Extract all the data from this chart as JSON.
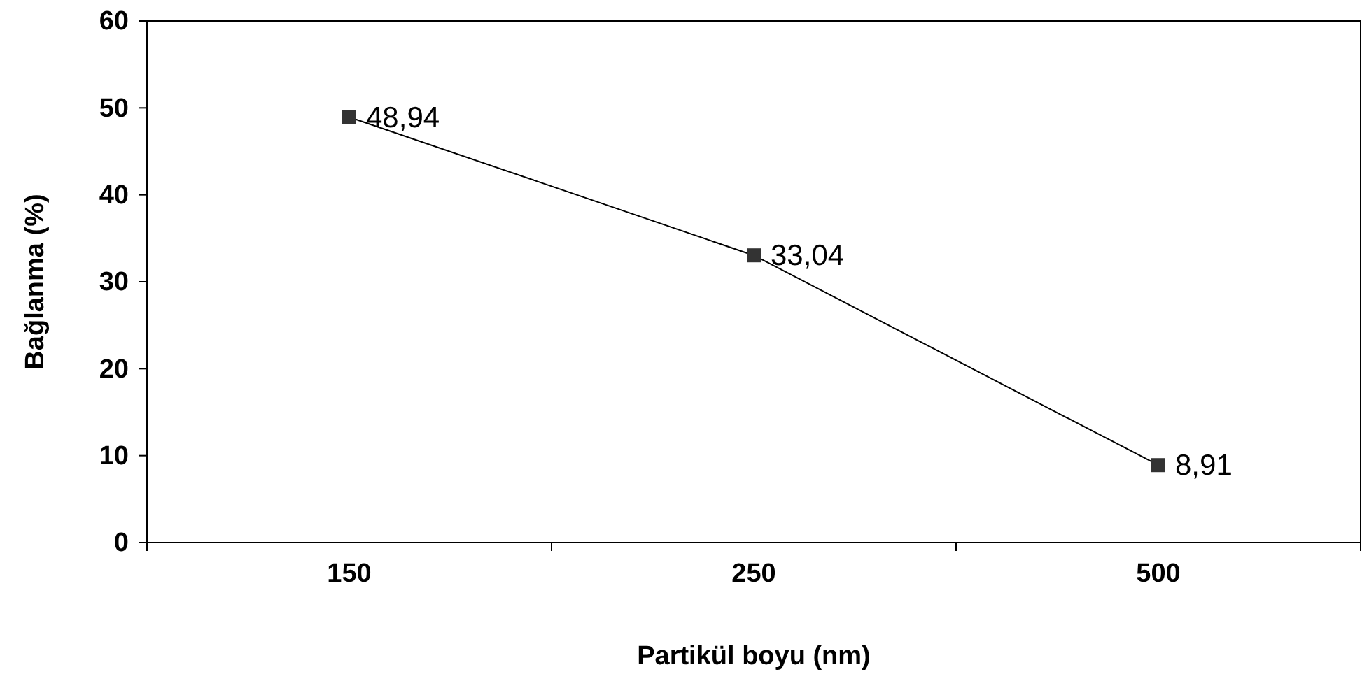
{
  "chart_data": {
    "type": "line",
    "xlabel": "Partikül boyu (nm)",
    "ylabel": "Bağlanma (%)",
    "categories": [
      "150",
      "250",
      "500"
    ],
    "series": [
      {
        "color": "#000000",
        "values": [
          48.94,
          33.04,
          8.91
        ],
        "value_labels": [
          "48,94",
          "33,04",
          "8,91"
        ]
      }
    ],
    "ylim": [
      0,
      60
    ],
    "yticks": [
      0,
      10,
      20,
      30,
      40,
      50,
      60
    ],
    "grid": false,
    "marker": "square",
    "line_style": "solid"
  }
}
